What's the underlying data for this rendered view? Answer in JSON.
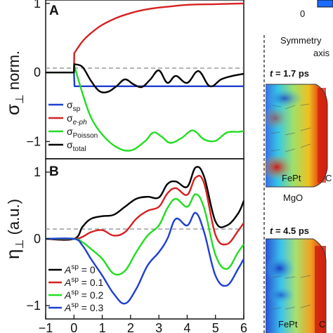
{
  "chart_data": [
    {
      "type": "line",
      "panel": "A",
      "ylabel": "σ⊥ norm.",
      "ylabel_symbol": "σ",
      "ylabel_sub": "⊥",
      "ylabel_rest": " norm.",
      "xlim": [
        -1,
        6
      ],
      "ylim": [
        -1.25,
        1.05
      ],
      "yticks": [
        "1",
        "0",
        "−1"
      ],
      "ytick_values": [
        1,
        0,
        -1
      ],
      "zero_line": "dashed",
      "series": [
        {
          "name": "σsp",
          "label_main": "σ",
          "label_sub": "sp",
          "color": "#1f3fd1",
          "x": [
            -1,
            0,
            0.02,
            6
          ],
          "y": [
            0,
            0,
            -0.2,
            -0.2
          ]
        },
        {
          "name": "σe-ph",
          "label_main": "σ",
          "label_sub": "e-ph",
          "color": "#d62020",
          "x": [
            -1,
            0,
            0.01,
            0.3,
            0.6,
            1.0,
            1.5,
            2.0,
            2.5,
            3.0,
            3.5,
            4.0,
            5.0,
            6.0
          ],
          "y": [
            0,
            0,
            0.28,
            0.45,
            0.57,
            0.69,
            0.79,
            0.86,
            0.91,
            0.94,
            0.96,
            0.98,
            0.99,
            1.0
          ]
        },
        {
          "name": "σPoisson",
          "label_main": "σ",
          "label_sub": "Poisson",
          "color": "#22dd22",
          "x": [
            -1,
            0,
            0.01,
            0.3,
            0.6,
            1.0,
            1.5,
            2.0,
            2.5,
            2.8,
            3.1,
            3.4,
            3.8,
            4.2,
            4.6,
            5.0,
            5.4,
            5.8,
            6.0
          ],
          "y": [
            0,
            0,
            0.1,
            -0.3,
            -0.65,
            -0.9,
            -1.08,
            -1.13,
            -1.0,
            -0.87,
            -0.93,
            -1.02,
            -0.95,
            -0.84,
            -0.97,
            -0.99,
            -0.87,
            -0.86,
            -0.85
          ]
        },
        {
          "name": "σtotal",
          "label_main": "σ",
          "label_sub": "total",
          "color": "#000000",
          "x": [
            -1,
            0,
            0.01,
            0.3,
            0.6,
            0.9,
            1.2,
            1.5,
            1.8,
            2.1,
            2.4,
            2.7,
            3.0,
            3.3,
            3.6,
            4.0,
            4.4,
            4.8,
            5.2,
            5.6,
            6.0
          ],
          "y": [
            0,
            0,
            0.12,
            0.08,
            -0.12,
            -0.27,
            -0.28,
            -0.2,
            -0.1,
            -0.17,
            -0.21,
            -0.1,
            0.03,
            -0.15,
            -0.05,
            -0.15,
            0.02,
            -0.2,
            -0.1,
            -0.05,
            -0.02
          ]
        }
      ],
      "legend_position": "bottom-left"
    },
    {
      "type": "line",
      "panel": "B",
      "ylabel": "η⊥ (a.u.)",
      "ylabel_symbol": "η",
      "ylabel_sub": "⊥",
      "ylabel_rest": " (a.u.)",
      "xlim": [
        -1,
        6
      ],
      "ylim": [
        -1.2,
        1.2
      ],
      "yticks": [
        "1",
        "0",
        "−1"
      ],
      "ytick_values": [
        1,
        0,
        -1
      ],
      "xticks": [
        "−1",
        "0",
        "1",
        "2",
        "3",
        "4",
        "5",
        "6"
      ],
      "xtick_values": [
        -1,
        0,
        1,
        2,
        3,
        4,
        5,
        6
      ],
      "zero_line": "dashed",
      "series": [
        {
          "name": "Asp = 0",
          "label_main": "A",
          "label_sup": "sp",
          "label_rest": " = 0",
          "color": "#000000",
          "x": [
            -1,
            0,
            0.3,
            0.6,
            1.0,
            1.4,
            1.8,
            2.2,
            2.6,
            3.0,
            3.3,
            3.6,
            4.0,
            4.3,
            4.6,
            5.0,
            5.4,
            5.8,
            6.0
          ],
          "y": [
            0,
            0,
            0.18,
            0.3,
            0.34,
            0.36,
            0.48,
            0.6,
            0.63,
            0.62,
            0.82,
            0.86,
            0.78,
            1.07,
            0.93,
            0.26,
            0.2,
            0.38,
            0.57
          ]
        },
        {
          "name": "Asp = 0.1",
          "label_main": "A",
          "label_sup": "sp",
          "label_rest": " = 0.1",
          "color": "#d62020",
          "x": [
            -1,
            0,
            0.3,
            0.6,
            1.0,
            1.4,
            1.8,
            2.2,
            2.6,
            3.0,
            3.3,
            3.6,
            4.0,
            4.3,
            4.6,
            5.0,
            5.4,
            5.8,
            6.0
          ],
          "y": [
            0,
            0,
            0.03,
            0.1,
            0.13,
            0.05,
            0.1,
            0.3,
            0.42,
            0.48,
            0.68,
            0.76,
            0.66,
            0.92,
            0.83,
            0.06,
            -0.08,
            0.12,
            0.24
          ]
        },
        {
          "name": "Asp = 0.2",
          "label_main": "A",
          "label_sup": "sp",
          "label_rest": " = 0.2",
          "color": "#22dd22",
          "x": [
            -1,
            0,
            0.3,
            0.6,
            1.0,
            1.4,
            1.8,
            2.2,
            2.6,
            3.0,
            3.3,
            3.6,
            4.0,
            4.3,
            4.6,
            5.0,
            5.4,
            5.8,
            6.0
          ],
          "y": [
            0,
            0,
            -0.05,
            -0.15,
            -0.3,
            -0.52,
            -0.48,
            -0.2,
            0.05,
            0.2,
            0.46,
            0.6,
            0.48,
            0.67,
            0.46,
            -0.24,
            -0.45,
            -0.2,
            -0.08
          ]
        },
        {
          "name": "Asp = 0.3",
          "label_main": "A",
          "label_sup": "sp",
          "label_rest": " = 0.3",
          "color": "#1f3fd1",
          "x": [
            -1,
            0,
            0.3,
            0.6,
            1.0,
            1.4,
            1.8,
            2.2,
            2.6,
            3.0,
            3.3,
            3.6,
            4.0,
            4.3,
            4.6,
            5.0,
            5.4,
            5.8,
            6.0
          ],
          "y": [
            0,
            0,
            -0.1,
            -0.3,
            -0.55,
            -0.82,
            -0.97,
            -0.75,
            -0.4,
            -0.2,
            0.0,
            0.3,
            0.2,
            0.39,
            0.1,
            -0.55,
            -0.7,
            -0.45,
            -0.3
          ]
        }
      ],
      "legend_position": "bottom-left"
    }
  ],
  "side_panel": {
    "colorbar_zero_label": "0",
    "symmetry_label": "Symmetry",
    "axis_label": "axis",
    "time_label_1_var": "t",
    "time_label_1_value": " = 1.7 ps",
    "time_label_2_var": "t",
    "time_label_2_value": " = 4.5 ps",
    "fept_label_1": "FePt",
    "c_label_1": "C",
    "mgo_label": "MgO",
    "fept_label_2": "FePt",
    "c_label_2": "C"
  },
  "colors": {
    "axis": "#111111",
    "zero_line": "#888888",
    "colorbar_blue": "#1a6cff"
  }
}
